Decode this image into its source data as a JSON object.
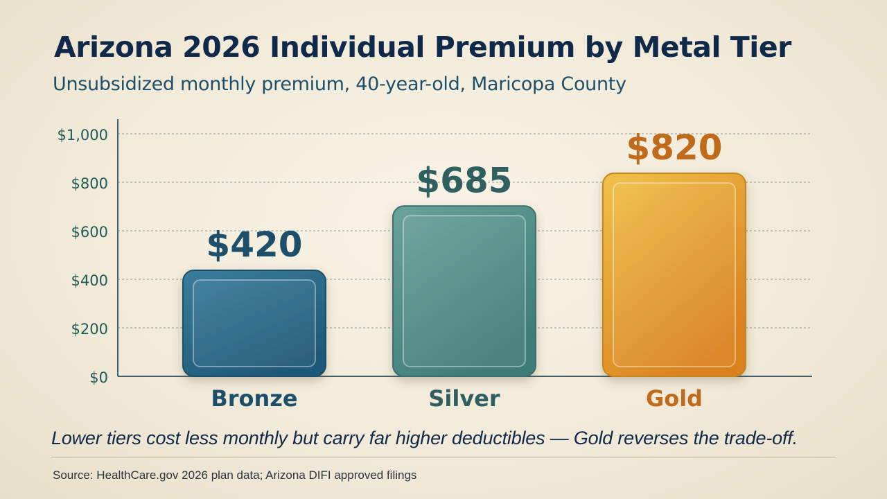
{
  "title": "Arizona 2026 Individual Premium by Metal Tier",
  "subtitle": "Unsubsidized monthly premium, 40-year-old, Maricopa County",
  "takeaway": "Lower tiers cost less monthly but carry far higher deductibles — Gold reverses the trade-off.",
  "source": "Source: HealthCare.gov 2026 plan data; Arizona DIFI approved filings",
  "chart_data": {
    "type": "bar",
    "categories": [
      "Bronze",
      "Silver",
      "Gold"
    ],
    "values": [
      420,
      685,
      820
    ],
    "value_labels": [
      "$420",
      "$685",
      "$820"
    ],
    "y_ticks": [
      0,
      200,
      400,
      600,
      800,
      1000
    ],
    "y_tick_labels": [
      "$0",
      "$200",
      "$400",
      "$600",
      "$800",
      "$1,000"
    ],
    "ylim": [
      0,
      1000
    ],
    "grid": true,
    "title": "Arizona 2026 Individual Premium by Metal Tier",
    "xlabel": "",
    "ylabel": "",
    "bar_colors": [
      {
        "top": "#3b7d9c",
        "bottom": "#1f5878",
        "stroke": "#1d4f6a",
        "label": "#1d4f6a"
      },
      {
        "top": "#6aa29c",
        "bottom": "#3f7b77",
        "stroke": "#3a6f6c",
        "label": "#2f5f5e"
      },
      {
        "top": "#f0c14a",
        "bottom": "#d9811f",
        "stroke": "#c7861e",
        "label": "#c06a1c"
      }
    ]
  }
}
